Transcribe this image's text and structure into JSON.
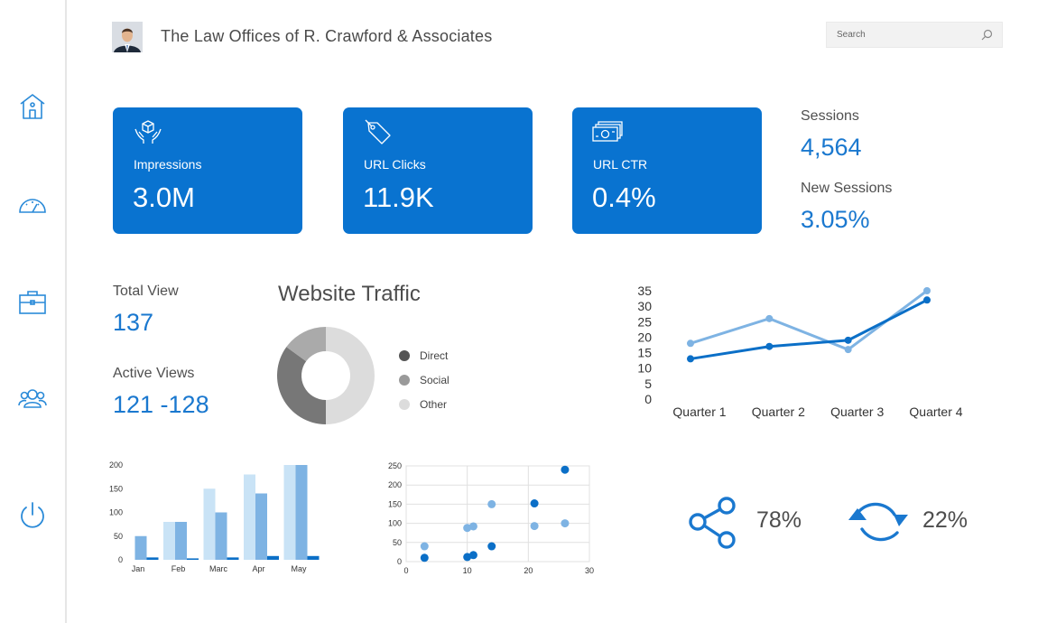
{
  "header": {
    "title": "The Law Offices of R. Crawford & Associates",
    "search_placeholder": "Search"
  },
  "sidebar": {
    "items": [
      {
        "icon": "home-icon"
      },
      {
        "icon": "dashboard-gauge-icon"
      },
      {
        "icon": "briefcase-icon"
      },
      {
        "icon": "users-icon"
      },
      {
        "icon": "power-icon"
      }
    ]
  },
  "cards": [
    {
      "label": "Impressions",
      "value": "3.0M",
      "icon": "box-in-hands-icon"
    },
    {
      "label": "URL Clicks",
      "value": "11.9K",
      "icon": "tag-icon"
    },
    {
      "label": "URL CTR",
      "value": "0.4%",
      "icon": "cash-icon"
    }
  ],
  "sessions": {
    "label": "Sessions",
    "value": "4,564"
  },
  "new_sessions": {
    "label": "New Sessions",
    "value": "3.05%"
  },
  "total_view": {
    "label": "Total View",
    "value": "137"
  },
  "active_views": {
    "label": "Active Views",
    "value": "121 -128"
  },
  "metrics": [
    {
      "icon": "share-icon",
      "value": "78%"
    },
    {
      "icon": "refresh-icon",
      "value": "22%"
    }
  ],
  "colors": {
    "accent": "#0973d0",
    "value_blue": "#1a78cf",
    "line_dark": "#0b6fc7",
    "line_light": "#7eb3e3",
    "donut_direct": "#777777",
    "donut_social": "#aaaaaa",
    "donut_other": "#dcdcdc"
  },
  "chart_data": [
    {
      "type": "pie",
      "title": "Website Traffic",
      "labels": [
        "Direct",
        "Social",
        "Other"
      ],
      "values": [
        35,
        15,
        50
      ],
      "legend_colors": [
        "#555555",
        "#9a9a9a",
        "#dcdcdc"
      ],
      "donut": true
    },
    {
      "type": "line",
      "categories": [
        "Quarter 1",
        "Quarter 2",
        "Quarter 3",
        "Quarter 4"
      ],
      "series": [
        {
          "values": [
            18,
            26,
            16,
            35
          ]
        },
        {
          "values": [
            13,
            17,
            19,
            32
          ]
        }
      ],
      "ylim": [
        0,
        35
      ],
      "yticks": [
        0,
        5,
        10,
        15,
        20,
        25,
        30,
        35
      ],
      "grid": false
    },
    {
      "type": "bar",
      "categories": [
        "Jan",
        "Feb",
        "Marc",
        "Apr",
        "May"
      ],
      "series": [
        {
          "values": [
            0,
            80,
            150,
            180,
            200
          ]
        },
        {
          "values": [
            50,
            80,
            100,
            140,
            200
          ]
        },
        {
          "values": [
            5,
            3,
            5,
            8,
            8
          ]
        }
      ],
      "ylim": [
        0,
        200
      ],
      "yticks": [
        0,
        50,
        100,
        150,
        200
      ],
      "grid": false
    },
    {
      "type": "scatter",
      "series": [
        {
          "points": [
            [
              3,
              40
            ],
            [
              10,
              88
            ],
            [
              11,
              92
            ],
            [
              14,
              150
            ],
            [
              21,
              93
            ],
            [
              26,
              100
            ]
          ]
        },
        {
          "points": [
            [
              3,
              10
            ],
            [
              10,
              12
            ],
            [
              11,
              17
            ],
            [
              14,
              40
            ],
            [
              21,
              152
            ],
            [
              26,
              240
            ]
          ]
        }
      ],
      "xlim": [
        0,
        30
      ],
      "ylim": [
        0,
        250
      ],
      "xticks": [
        0,
        10,
        20,
        30
      ],
      "yticks": [
        0,
        50,
        100,
        150,
        200,
        250
      ],
      "grid": true
    }
  ]
}
